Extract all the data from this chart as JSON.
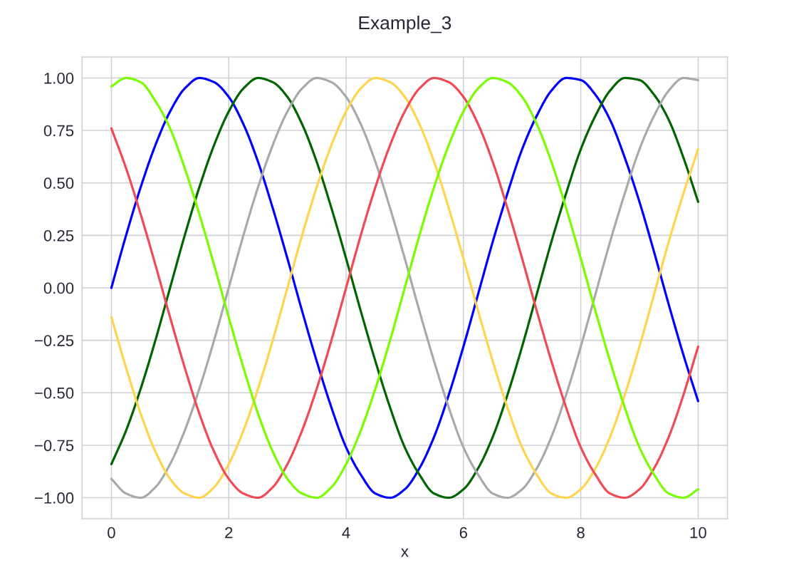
{
  "chart_data": {
    "type": "line",
    "title": "Example_3",
    "xlabel": "x",
    "x": [
      0,
      0.25,
      0.5,
      0.75,
      1,
      1.25,
      1.5,
      1.75,
      2,
      2.25,
      2.5,
      2.75,
      3,
      3.25,
      3.5,
      3.75,
      4,
      4.25,
      4.5,
      4.75,
      5,
      5.25,
      5.5,
      5.75,
      6,
      6.25,
      6.5,
      6.75,
      7,
      7.25,
      7.5,
      7.75,
      8,
      8.25,
      8.5,
      8.75,
      9,
      9.25,
      9.5,
      9.75,
      10
    ],
    "series": [
      {
        "color": "#0000ff",
        "values": [
          0,
          0.25,
          0.48,
          0.68,
          0.84,
          0.95,
          1.0,
          0.98,
          0.91,
          0.78,
          0.6,
          0.38,
          0.14,
          -0.11,
          -0.35,
          -0.57,
          -0.76,
          -0.89,
          -0.98,
          -1.0,
          -0.96,
          -0.86,
          -0.71,
          -0.51,
          -0.28,
          -0.03,
          0.22,
          0.45,
          0.66,
          0.82,
          0.94,
          1.0,
          0.99,
          0.92,
          0.8,
          0.62,
          0.41,
          0.17,
          -0.08,
          -0.32,
          -0.54
        ]
      },
      {
        "color": "#006400",
        "values": [
          -0.84,
          -0.68,
          -0.48,
          -0.25,
          0,
          0.25,
          0.48,
          0.68,
          0.84,
          0.95,
          1.0,
          0.98,
          0.91,
          0.78,
          0.6,
          0.38,
          0.14,
          -0.11,
          -0.35,
          -0.57,
          -0.76,
          -0.89,
          -0.98,
          -1.0,
          -0.96,
          -0.86,
          -0.71,
          -0.51,
          -0.28,
          -0.03,
          0.22,
          0.45,
          0.66,
          0.82,
          0.94,
          1.0,
          0.99,
          0.92,
          0.8,
          0.62,
          0.41
        ]
      },
      {
        "color": "#a9a9a9",
        "values": [
          -0.91,
          -0.98,
          -1.0,
          -0.95,
          -0.84,
          -0.68,
          -0.48,
          -0.25,
          0,
          0.25,
          0.48,
          0.68,
          0.84,
          0.95,
          1.0,
          0.98,
          0.91,
          0.78,
          0.6,
          0.38,
          0.14,
          -0.11,
          -0.35,
          -0.57,
          -0.76,
          -0.89,
          -0.98,
          -1.0,
          -0.96,
          -0.86,
          -0.71,
          -0.51,
          -0.28,
          -0.03,
          0.22,
          0.45,
          0.66,
          0.82,
          0.94,
          1.0,
          0.99
        ]
      },
      {
        "color": "#ffd54f",
        "values": [
          -0.14,
          -0.38,
          -0.6,
          -0.78,
          -0.91,
          -0.98,
          -1.0,
          -0.95,
          -0.84,
          -0.68,
          -0.48,
          -0.25,
          0,
          0.25,
          0.48,
          0.68,
          0.84,
          0.95,
          1.0,
          0.98,
          0.91,
          0.78,
          0.6,
          0.38,
          0.14,
          -0.11,
          -0.35,
          -0.57,
          -0.76,
          -0.89,
          -0.98,
          -1.0,
          -0.96,
          -0.86,
          -0.71,
          -0.51,
          -0.28,
          -0.03,
          0.22,
          0.45,
          0.66
        ]
      },
      {
        "color": "#f04b55",
        "values": [
          0.76,
          0.57,
          0.35,
          0.11,
          -0.14,
          -0.38,
          -0.6,
          -0.78,
          -0.91,
          -0.98,
          -1.0,
          -0.95,
          -0.84,
          -0.68,
          -0.48,
          -0.25,
          0,
          0.25,
          0.48,
          0.68,
          0.84,
          0.95,
          1.0,
          0.98,
          0.91,
          0.78,
          0.6,
          0.38,
          0.14,
          -0.11,
          -0.35,
          -0.57,
          -0.76,
          -0.89,
          -0.98,
          -1.0,
          -0.96,
          -0.86,
          -0.71,
          -0.51,
          -0.28
        ]
      },
      {
        "color": "#7cfc00",
        "values": [
          0.96,
          1.0,
          0.98,
          0.89,
          0.76,
          0.57,
          0.35,
          0.11,
          -0.14,
          -0.38,
          -0.6,
          -0.78,
          -0.91,
          -0.98,
          -1.0,
          -0.95,
          -0.84,
          -0.68,
          -0.48,
          -0.25,
          0,
          0.25,
          0.48,
          0.68,
          0.84,
          0.95,
          1.0,
          0.98,
          0.91,
          0.78,
          0.6,
          0.38,
          0.14,
          -0.11,
          -0.35,
          -0.57,
          -0.76,
          -0.89,
          -0.98,
          -1.0,
          -0.96
        ]
      }
    ],
    "xlim": [
      -0.5,
      10.5
    ],
    "ylim": [
      -1.1,
      1.1
    ],
    "xticks": [
      0,
      2,
      4,
      6,
      8,
      10
    ],
    "yticks": [
      {
        "value": -1.0,
        "label": "−1.00"
      },
      {
        "value": -0.75,
        "label": "−0.75"
      },
      {
        "value": -0.5,
        "label": "−0.50"
      },
      {
        "value": -0.25,
        "label": "−0.25"
      },
      {
        "value": 0,
        "label": "0.00"
      },
      {
        "value": 0.25,
        "label": "0.25"
      },
      {
        "value": 0.5,
        "label": "0.50"
      },
      {
        "value": 0.75,
        "label": "0.75"
      },
      {
        "value": 1.0,
        "label": "1.00"
      }
    ],
    "grid": true,
    "marker": "none",
    "line_style": "solid"
  }
}
